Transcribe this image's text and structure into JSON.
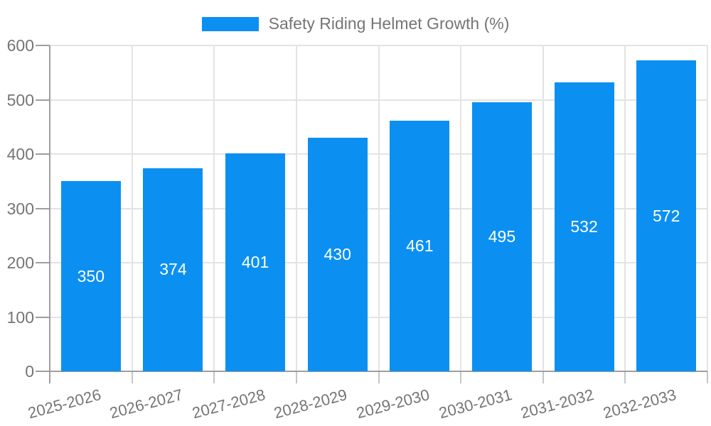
{
  "chart_data": {
    "type": "bar",
    "title": "Safety Riding Helmet Growth (%)",
    "categories": [
      "2025-2026",
      "2026-2027",
      "2027-2028",
      "2028-2029",
      "2029-2030",
      "2030-2031",
      "2031-2032",
      "2032-2033"
    ],
    "values": [
      350,
      374,
      401,
      430,
      461,
      495,
      532,
      572
    ],
    "xlabel": "",
    "ylabel": "",
    "ylim": [
      0,
      600
    ],
    "yticks": [
      0,
      100,
      200,
      300,
      400,
      500,
      600
    ],
    "grid": true,
    "legend": {
      "label": "Safety Riding Helmet Growth (%)",
      "position": "top"
    },
    "x_label_rotation_deg": -15,
    "colors": {
      "bar": "#0b90f2",
      "bar_label": "#ffffff",
      "axis_text": "#757575",
      "axis_line": "#9e9e9e",
      "y_tick": "#9e9e9e",
      "x_tick": "#c6c6c6",
      "grid": "#e3e3e3",
      "background": "#ffffff"
    }
  }
}
